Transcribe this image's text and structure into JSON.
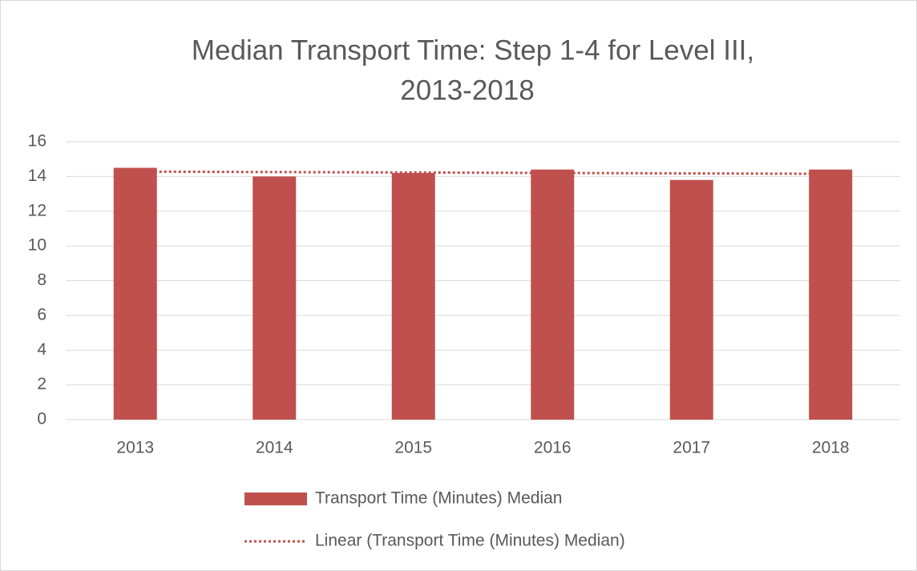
{
  "chart_data": {
    "type": "bar",
    "title": [
      "Median Transport Time: Step 1-4 for Level III,",
      "2013-2018"
    ],
    "categories": [
      "2013",
      "2014",
      "2015",
      "2016",
      "2017",
      "2018"
    ],
    "series": [
      {
        "name": "Transport Time (Minutes) Median",
        "color": "#c0504d",
        "values": [
          14.5,
          14.0,
          14.2,
          14.4,
          13.8,
          14.4
        ]
      }
    ],
    "trendline": {
      "type": "linear",
      "name": "Linear (Transport Time (Minutes) Median)",
      "color": "#c0504d"
    },
    "ylim": [
      0,
      16
    ],
    "yticks": [
      0,
      2,
      4,
      6,
      8,
      10,
      12,
      14,
      16
    ],
    "grid": true,
    "legend": "bottom"
  }
}
